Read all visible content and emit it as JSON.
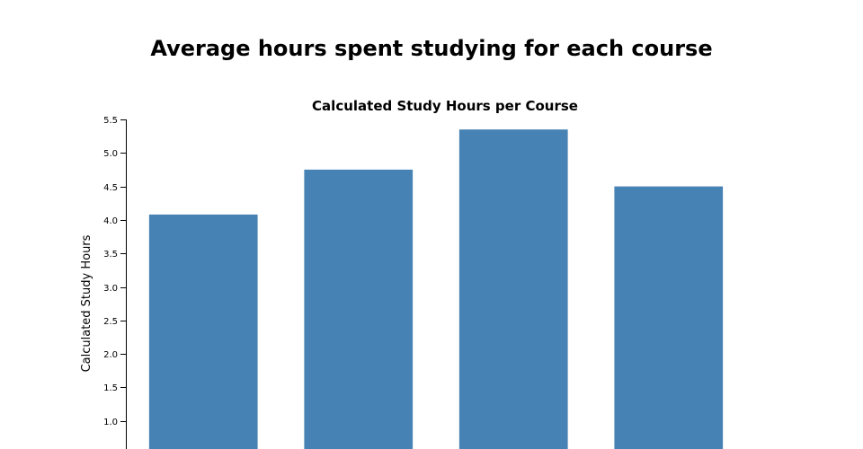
{
  "page": {
    "title": "Average hours spent studying for each course"
  },
  "chart_data": {
    "type": "bar",
    "title": "Calculated Study Hours per Course",
    "xlabel": "",
    "ylabel": "Calculated Study Hours",
    "ylim": [
      0.5,
      5.5
    ],
    "yticks": [
      1.0,
      1.5,
      2.0,
      2.5,
      3.0,
      3.5,
      4.0,
      4.5,
      5.0,
      5.5
    ],
    "values": [
      4.08,
      4.75,
      5.35,
      4.5
    ],
    "bar_color": "#4682b4",
    "grid": false
  }
}
